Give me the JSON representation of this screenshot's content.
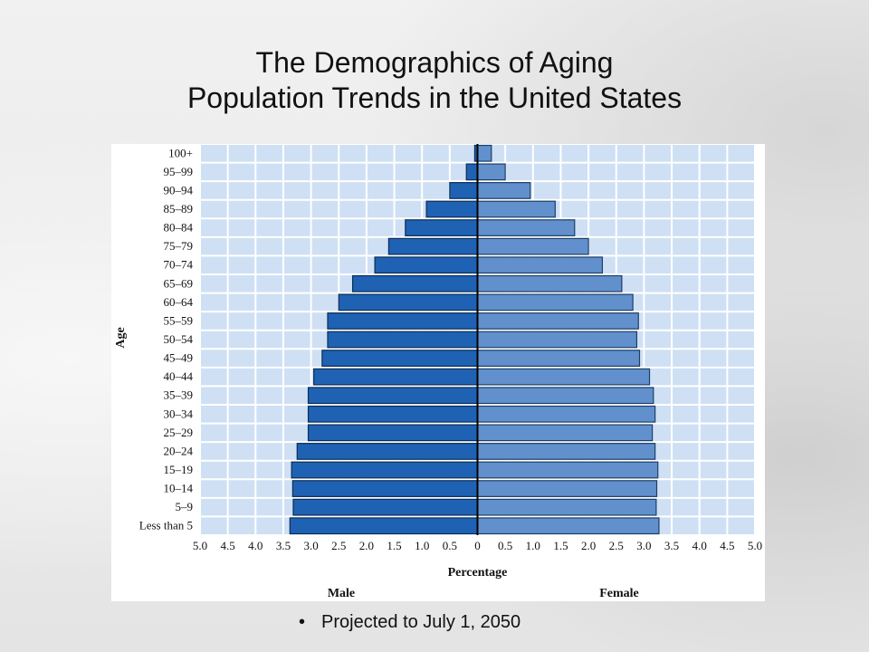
{
  "slide": {
    "title_line1": "The Demographics of Aging",
    "title_line2": "Population Trends in the United States",
    "bullet": "Projected to July 1, 2050"
  },
  "colors": {
    "male": "#1f62b4",
    "female": "#6190cd",
    "plot_bg": "#cfe0f4",
    "grid": "#ffffff"
  },
  "chart_data": {
    "type": "bar",
    "orientation": "horizontal-pyramid",
    "ylabel": "Age",
    "xlabel": "Percentage",
    "left_label": "Male",
    "right_label": "Female",
    "xlim": [
      -5.0,
      5.0
    ],
    "x_ticks": [
      "5.0",
      "4.5",
      "4.0",
      "3.5",
      "3.0",
      "2.5",
      "2.0",
      "1.5",
      "1.0",
      "0.5",
      "0",
      "0.5",
      "1.0",
      "1.5",
      "2.0",
      "2.5",
      "3.0",
      "3.5",
      "4.0",
      "4.5",
      "5.0"
    ],
    "categories": [
      "100+",
      "95–99",
      "90–94",
      "85–89",
      "80–84",
      "75–79",
      "70–74",
      "65–69",
      "60–64",
      "55–59",
      "50–54",
      "45–49",
      "40–44",
      "35–39",
      "30–34",
      "25–29",
      "20–24",
      "15–19",
      "10–14",
      "5–9",
      "Less than 5"
    ],
    "series": [
      {
        "name": "Male",
        "values": [
          0.05,
          0.2,
          0.5,
          0.92,
          1.3,
          1.6,
          1.85,
          2.25,
          2.5,
          2.7,
          2.7,
          2.8,
          2.95,
          3.05,
          3.05,
          3.05,
          3.25,
          3.35,
          3.33,
          3.32,
          3.38
        ]
      },
      {
        "name": "Female",
        "values": [
          0.25,
          0.5,
          0.95,
          1.4,
          1.75,
          2.0,
          2.25,
          2.6,
          2.8,
          2.9,
          2.87,
          2.92,
          3.1,
          3.17,
          3.2,
          3.15,
          3.2,
          3.25,
          3.23,
          3.22,
          3.27
        ]
      }
    ],
    "grid": true
  }
}
